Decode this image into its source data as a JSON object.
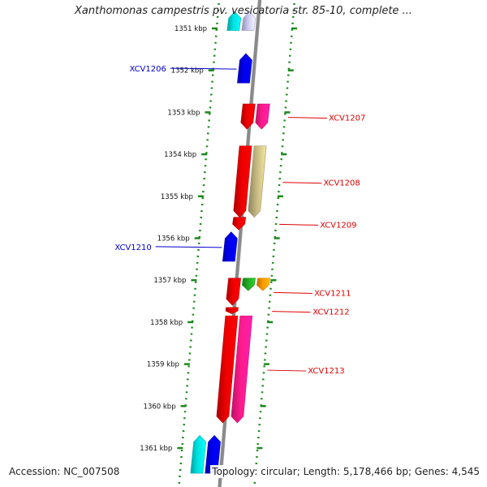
{
  "title": "Xanthomonas campestris pv. vesicatoria str. 85-10, complete ...",
  "footer": {
    "accession_label": "Accession:",
    "accession": "NC_007508",
    "topology_label": "Topology:",
    "topology": "circular",
    "length_label": "Length:",
    "length": "5,178,466 bp",
    "genes_label": "Genes:",
    "genes": "4,545"
  },
  "ruler": {
    "unit": "kbp",
    "ticks": [
      {
        "kbp": 1351,
        "label": "1351 kbp"
      },
      {
        "kbp": 1352,
        "label": "1352 kbp"
      },
      {
        "kbp": 1353,
        "label": "1353 kbp"
      },
      {
        "kbp": 1354,
        "label": "1354 kbp"
      },
      {
        "kbp": 1355,
        "label": "1355 kbp"
      },
      {
        "kbp": 1356,
        "label": "1356 kbp"
      },
      {
        "kbp": 1357,
        "label": "1357 kbp"
      },
      {
        "kbp": 1358,
        "label": "1358 kbp"
      },
      {
        "kbp": 1359,
        "label": "1359 kbp"
      },
      {
        "kbp": 1360,
        "label": "1360 kbp"
      },
      {
        "kbp": 1361,
        "label": "1361 kbp"
      }
    ]
  },
  "colors": {
    "forward_label": "#0000cc",
    "reverse_label": "#dd0000",
    "backbone": "#8a8a8a",
    "tick_dots": "#1a8a1a",
    "blue": "#0000ee",
    "cyan": "#00e0e0",
    "lavender": "#c8c8f0",
    "red": "#ee0000",
    "magenta": "#ff1a8c",
    "khaki": "#c4b880",
    "green": "#22aa22",
    "orange": "#ff9900"
  },
  "genes": [
    {
      "label": "XCV1206",
      "strand": "+",
      "start": 1351.6,
      "end": 1352.3,
      "color": "blue",
      "lane": 1
    },
    {
      "label": "XCV1207",
      "strand": "-",
      "start": 1352.8,
      "end": 1353.4,
      "color": "red",
      "lane": 1
    },
    {
      "label": "",
      "strand": "-",
      "start": 1352.8,
      "end": 1353.4,
      "color": "magenta",
      "lane": 2
    },
    {
      "label": "XCV1208",
      "strand": "-",
      "start": 1353.8,
      "end": 1355.5,
      "color": "red",
      "lane": 1
    },
    {
      "label": "",
      "strand": "-",
      "start": 1353.8,
      "end": 1355.5,
      "color": "khaki",
      "lane": 2
    },
    {
      "label": "XCV1209",
      "strand": "-",
      "start": 1355.5,
      "end": 1355.8,
      "color": "red",
      "lane": 1
    },
    {
      "label": "XCV1210",
      "strand": "+",
      "start": 1355.85,
      "end": 1356.55,
      "color": "blue",
      "lane": 1
    },
    {
      "label": "XCV1211",
      "strand": "-",
      "start": 1356.95,
      "end": 1357.6,
      "color": "red",
      "lane": 1
    },
    {
      "label": "",
      "strand": "-",
      "start": 1356.95,
      "end": 1357.25,
      "color": "green",
      "lane": 2
    },
    {
      "label": "",
      "strand": "-",
      "start": 1356.95,
      "end": 1357.25,
      "color": "orange",
      "lane": 3
    },
    {
      "label": "XCV1212",
      "strand": "-",
      "start": 1357.65,
      "end": 1357.8,
      "color": "red",
      "lane": 1
    },
    {
      "label": "XCV1213",
      "strand": "-",
      "start": 1357.85,
      "end": 1360.4,
      "color": "red",
      "lane": 1
    },
    {
      "label": "",
      "strand": "-",
      "start": 1357.85,
      "end": 1360.4,
      "color": "magenta",
      "lane": 2
    },
    {
      "label": "",
      "strand": "+",
      "start": 1360.7,
      "end": 1361.6,
      "color": "blue",
      "lane": 1
    },
    {
      "label": "",
      "strand": "+",
      "start": 1360.7,
      "end": 1361.6,
      "color": "cyan",
      "lane": 2
    },
    {
      "label": "",
      "strand": "+",
      "start": 1350.6,
      "end": 1351.05,
      "color": "lavender",
      "lane": 1
    },
    {
      "label": "",
      "strand": "+",
      "start": 1350.6,
      "end": 1351.05,
      "color": "cyan",
      "lane": 2
    }
  ]
}
